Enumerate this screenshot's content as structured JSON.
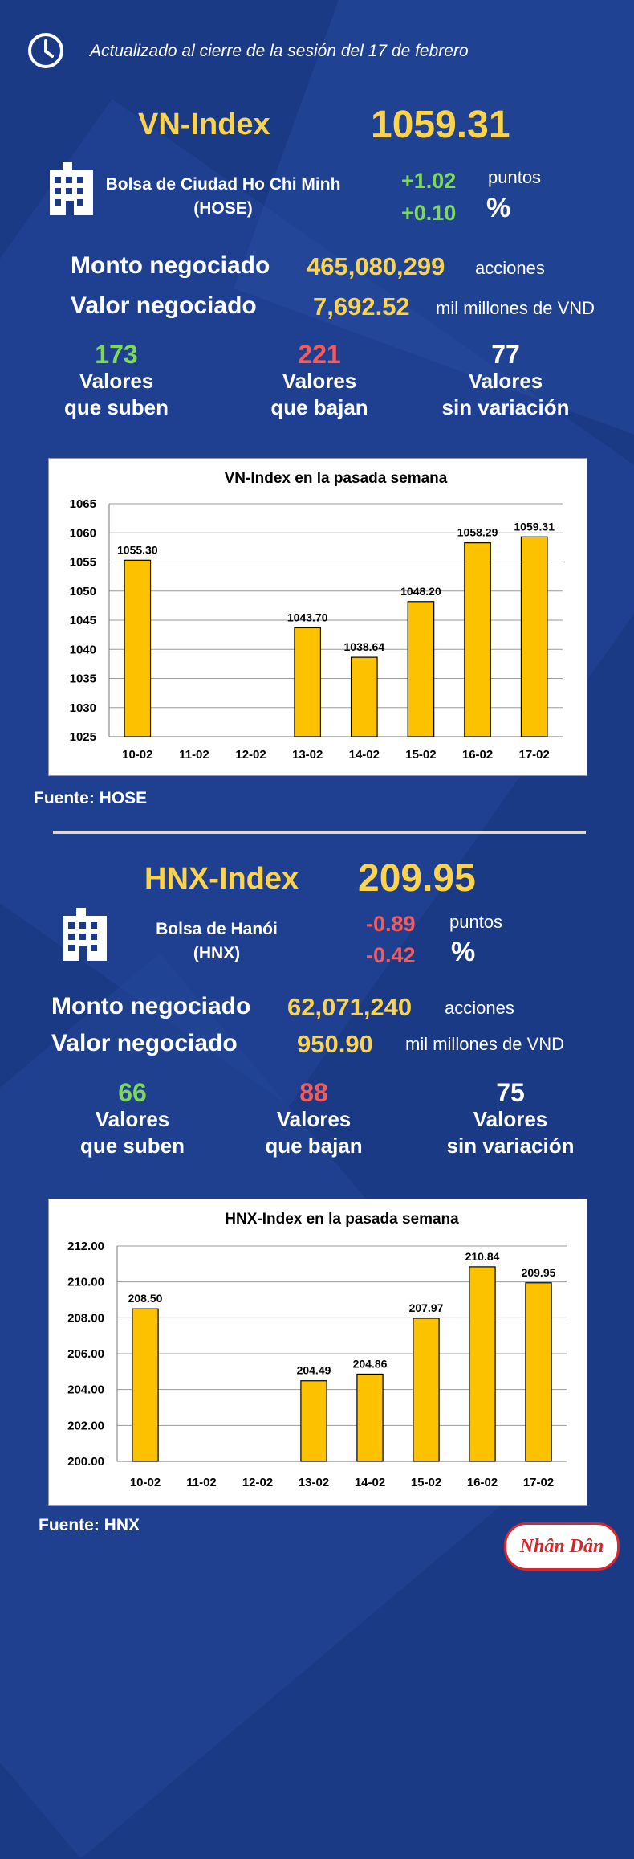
{
  "header": {
    "updated_text": "Actualizado al cierre de la sesión del 17 de febrero"
  },
  "vn": {
    "index_name": "VN-Index",
    "index_value": "1059.31",
    "exchange_line1": "Bolsa de Ciudad Ho Chi Minh",
    "exchange_line2": "(HOSE)",
    "change_points": "+1.02",
    "change_points_unit": "puntos",
    "change_pct": "+0.10",
    "change_pct_unit": "%",
    "volume_label": "Monto negociado",
    "volume_value": "465,080,299",
    "volume_unit": "acciones",
    "value_label": "Valor negociado",
    "value_value": "7,692.52",
    "value_unit": "mil millones de VND",
    "up_count": "173",
    "up_label1": "Valores",
    "up_label2": "que suben",
    "down_count": "221",
    "down_label1": "Valores",
    "down_label2": "que bajan",
    "flat_count": "77",
    "flat_label1": "Valores",
    "flat_label2": "sin variación",
    "source": "Fuente: HOSE"
  },
  "hnx": {
    "index_name": "HNX-Index",
    "index_value": "209.95",
    "exchange_line1": "Bolsa de Hanói",
    "exchange_line2": "(HNX)",
    "change_points": "-0.89",
    "change_points_unit": "puntos",
    "change_pct": "-0.42",
    "change_pct_unit": "%",
    "volume_label": "Monto negociado",
    "volume_value": "62,071,240",
    "volume_unit": "acciones",
    "value_label": "Valor negociado",
    "value_value": "950.90",
    "value_unit": "mil millones de VND",
    "up_count": "66",
    "up_label1": "Valores",
    "up_label2": "que suben",
    "down_count": "88",
    "down_label1": "Valores",
    "down_label2": "que bajan",
    "flat_count": "75",
    "flat_label1": "Valores",
    "flat_label2": "sin variación",
    "source": "Fuente:  HNX"
  },
  "logo_text": "Nhân Dân",
  "colors": {
    "bar": "#fcc200",
    "background": "#1b3a86",
    "accent_yellow": "#fcd34d",
    "up_green": "#7ed957",
    "down_red": "#f45b5b"
  },
  "chart_data": [
    {
      "type": "bar",
      "title": "VN-Index en la pasada semana",
      "categories": [
        "10-02",
        "11-02",
        "12-02",
        "13-02",
        "14-02",
        "15-02",
        "16-02",
        "17-02"
      ],
      "values": [
        1055.3,
        null,
        null,
        1043.7,
        1038.64,
        1048.2,
        1058.29,
        1059.31
      ],
      "labels": [
        "1055.30",
        "",
        "",
        "1043.70",
        "1038.64",
        "1048.20",
        "1058.29",
        "1059.31"
      ],
      "yticks": [
        "1065",
        "1060",
        "1055",
        "1050",
        "1045",
        "1040",
        "1035",
        "1030",
        "1025"
      ],
      "ylim": [
        1025,
        1065
      ],
      "grid": true
    },
    {
      "type": "bar",
      "title": "HNX-Index en la pasada semana",
      "categories": [
        "10-02",
        "11-02",
        "12-02",
        "13-02",
        "14-02",
        "15-02",
        "16-02",
        "17-02"
      ],
      "values": [
        208.5,
        null,
        null,
        204.49,
        204.86,
        207.97,
        210.84,
        209.95
      ],
      "labels": [
        "208.50",
        "",
        "",
        "204.49",
        "204.86",
        "207.97",
        "210.84",
        "209.95"
      ],
      "yticks": [
        "212.00",
        "210.00",
        "208.00",
        "206.00",
        "204.00",
        "202.00",
        "200.00"
      ],
      "ylim": [
        200,
        212
      ],
      "grid": true
    }
  ]
}
